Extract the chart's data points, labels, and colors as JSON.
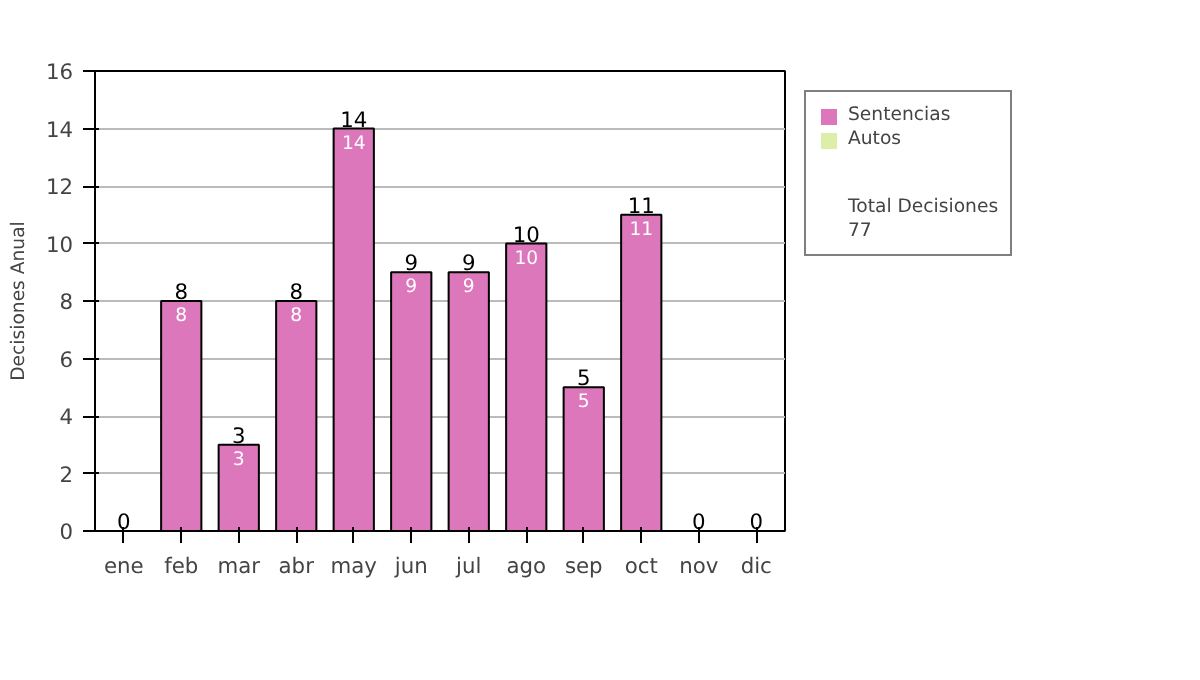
{
  "chart_data": {
    "type": "bar",
    "stacked": true,
    "ylabel": "Decisiones Anual",
    "categories": [
      "ene",
      "feb",
      "mar",
      "abr",
      "may",
      "jun",
      "jul",
      "ago",
      "sep",
      "oct",
      "nov",
      "dic"
    ],
    "series": [
      {
        "name": "Sentencias",
        "color": "#dd77bb",
        "values": [
          0,
          8,
          3,
          8,
          14,
          9,
          9,
          10,
          5,
          11,
          0,
          0
        ],
        "value_labels": [
          null,
          "8",
          "3",
          "8",
          "14",
          "9",
          "9",
          "10",
          "5",
          "11",
          null,
          null
        ]
      },
      {
        "name": "Autos",
        "color": "#ddeeaa",
        "values": [
          0,
          0,
          0,
          0,
          0,
          0,
          0,
          0,
          0,
          0,
          0,
          0
        ]
      }
    ],
    "totals": [
      "0",
      "8",
      "3",
      "8",
      "14",
      "9",
      "9",
      "10",
      "5",
      "11",
      "0",
      "0"
    ],
    "ylim": [
      0,
      16
    ],
    "yticks": [
      0,
      2,
      4,
      6,
      8,
      10,
      12,
      14,
      16
    ],
    "grid": "y",
    "legend": "right",
    "annotations": [
      "Total Decisiones",
      "77"
    ]
  }
}
